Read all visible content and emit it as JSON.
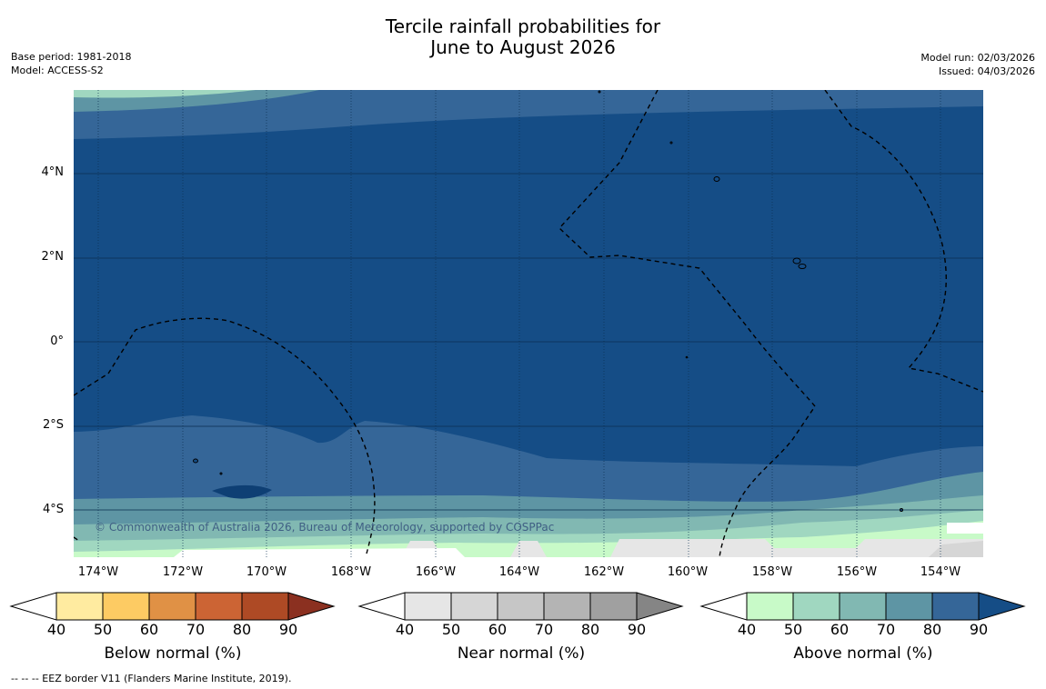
{
  "header": {
    "title_line1": "Tercile rainfall probabilities for",
    "title_line2": "June to August 2026",
    "base_period": "Base period: 1981-2018",
    "model": "Model: ACCESS-S2",
    "model_run": "Model run: 02/03/2026",
    "issued": "Issued: 04/03/2026"
  },
  "map": {
    "copyright": "© Commonwealth of Australia 2026, Bureau of Meteorology, supported by COSPPac",
    "lat_labels": [
      "4°N",
      "2°N",
      "0°",
      "2°S",
      "4°S"
    ],
    "lon_labels": [
      "174°W",
      "172°W",
      "170°W",
      "168°W",
      "166°W",
      "164°W",
      "162°W",
      "160°W",
      "158°W",
      "156°W",
      "154°W"
    ]
  },
  "colorbars": [
    {
      "title": "Below normal (%)",
      "ticks": [
        "40",
        "50",
        "60",
        "70",
        "80",
        "90"
      ],
      "colors": [
        "#ffeba0",
        "#fdcb63",
        "#e09145",
        "#cc6434",
        "#ae4a25",
        "#8b3020"
      ]
    },
    {
      "title": "Near normal (%)",
      "ticks": [
        "40",
        "50",
        "60",
        "70",
        "80",
        "90"
      ],
      "colors": [
        "#e6e6e6",
        "#d6d6d6",
        "#c6c6c6",
        "#b4b4b4",
        "#a0a0a0",
        "#858585"
      ]
    },
    {
      "title": "Above normal (%)",
      "ticks": [
        "40",
        "50",
        "60",
        "70",
        "80",
        "90"
      ],
      "colors": [
        "#c8fac8",
        "#a0d7c0",
        "#81b8b2",
        "#5e95a4",
        "#356698",
        "#154d86"
      ]
    }
  ],
  "footnote": "--  --  -- EEZ border V11 (Flanders Marine Institute, 2019)."
}
